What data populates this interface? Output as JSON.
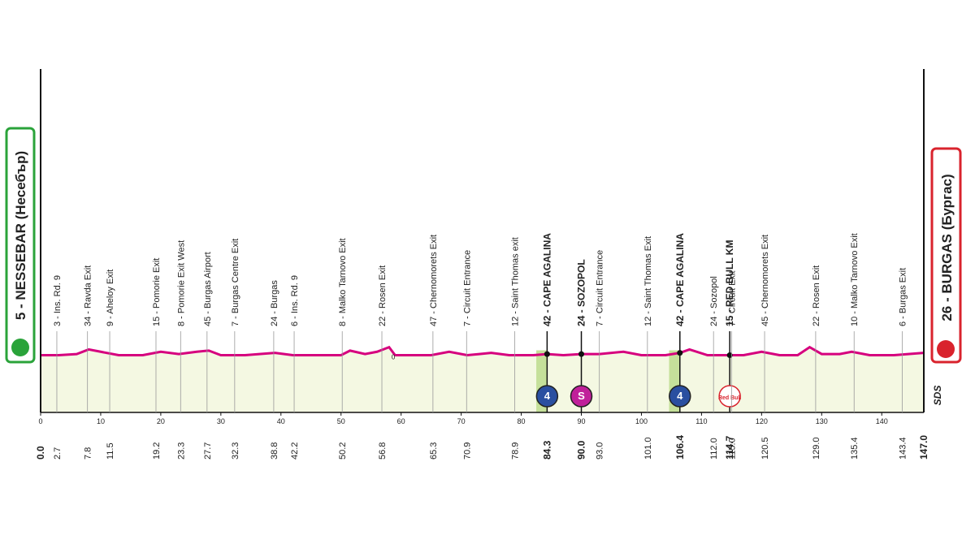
{
  "chart_data": {
    "type": "profile",
    "start": "5 - NESSEBAR (Несебър)",
    "finish": "26 - BURGAS (Бургас)",
    "logo": "SDS",
    "note": "0",
    "xlim": [
      0,
      147
    ],
    "xticks": [
      0,
      10,
      20,
      30,
      40,
      50,
      60,
      70,
      80,
      90,
      100,
      110,
      120,
      130,
      140
    ],
    "ylim": [
      0,
      300
    ],
    "profile": {
      "color": "#d6007e",
      "x": [
        0,
        3,
        6,
        8,
        10,
        13,
        17,
        20,
        23,
        26,
        28,
        30,
        34,
        39,
        42,
        46,
        50,
        51.5,
        54,
        56,
        58,
        59,
        62,
        65,
        68,
        71,
        73,
        75,
        78,
        82,
        84.3,
        87,
        90,
        93,
        97,
        100,
        104,
        106.4,
        108,
        111,
        114.7,
        117,
        120,
        123,
        126,
        128,
        130,
        133,
        135,
        138,
        142,
        147
      ],
      "values": [
        50,
        50,
        51,
        55,
        53,
        50,
        50,
        53,
        51,
        53,
        54,
        50,
        50,
        52,
        50,
        50,
        50,
        54,
        51,
        53,
        57,
        50,
        50,
        50,
        53,
        50,
        51,
        52,
        50,
        50,
        51,
        50,
        51,
        51,
        53,
        50,
        50,
        52,
        55,
        50,
        50,
        50,
        53,
        50,
        50,
        57,
        51,
        51,
        53,
        50,
        50,
        52
      ]
    },
    "climbs": [
      [
        82.5,
        84.3
      ],
      [
        104.6,
        106.4
      ]
    ],
    "waypoints": [
      {
        "km": {
          "value": 0,
          "label": "0.0"
        },
        "bold": true
      },
      {
        "km": 2.7,
        "label": "3 - Ins. Rd. 9"
      },
      {
        "km": 7.8,
        "label": "34 - Ravda Exit"
      },
      {
        "km": 11.5,
        "label": "9 - Aheloy Exit"
      },
      {
        "km": 19.2,
        "label": "15 - Pomorie Exit"
      },
      {
        "km": 23.3,
        "label": "8 - Pomorie Exit West"
      },
      {
        "km": 27.7,
        "label": "45 - Burgas Airport"
      },
      {
        "km": 32.3,
        "label": "7 - Burgas Centre Exit"
      },
      {
        "km": 38.8,
        "label": "24 - Burgas"
      },
      {
        "km": 42.2,
        "label": "6 - Ins. Rd. 9"
      },
      {
        "km": 50.2,
        "label": "8 - Malko Tarnovo Exit"
      },
      {
        "km": 56.8,
        "label": "22 - Rosen Exit"
      },
      {
        "km": 65.3,
        "label": "47 - Chernomorets Exit"
      },
      {
        "km": 70.9,
        "label": "7 - Circuit Entrance"
      },
      {
        "km": 78.9,
        "label": "12 - Saint Thomas exit"
      },
      {
        "km": 84.3,
        "label": "42 - CAPE AGALINA",
        "bold": true,
        "badge": "4"
      },
      {
        "km": {
          "value": 90,
          "label": "90.0"
        },
        "label": "24 - SOZOPOL",
        "bold": true,
        "badge": "S"
      },
      {
        "km": {
          "value": 93,
          "label": "93.0"
        },
        "label": "7 - Circuit Entrance"
      },
      {
        "km": {
          "value": 101,
          "label": "101.0"
        },
        "label": "12 - Saint Thomas Exit"
      },
      {
        "km": 106.4,
        "label": "42 - CAPE AGALINA",
        "bold": true,
        "badge": "4"
      },
      {
        "km": {
          "value": 112,
          "label": "112.0"
        },
        "label": "24 - Sozopol"
      },
      {
        "km": 114.7,
        "label": "15 - RED BULL KM",
        "bold": true,
        "badge": "Red Bull"
      },
      {
        "km": {
          "value": 115,
          "label": "115.0"
        },
        "label": "7 - Circuit Exit"
      },
      {
        "km": 120.5,
        "label": "45 - Chernomorets Exit"
      },
      {
        "km": {
          "value": 129,
          "label": "129.0"
        },
        "label": "22 - Rosen Exit"
      },
      {
        "km": 135.4,
        "label": "10 - Malko Tarnovo Exit"
      },
      {
        "km": 143.4,
        "label": "6 - Burgas Exit"
      },
      {
        "km": {
          "value": 147,
          "label": "147.0"
        },
        "bold": true
      }
    ]
  }
}
